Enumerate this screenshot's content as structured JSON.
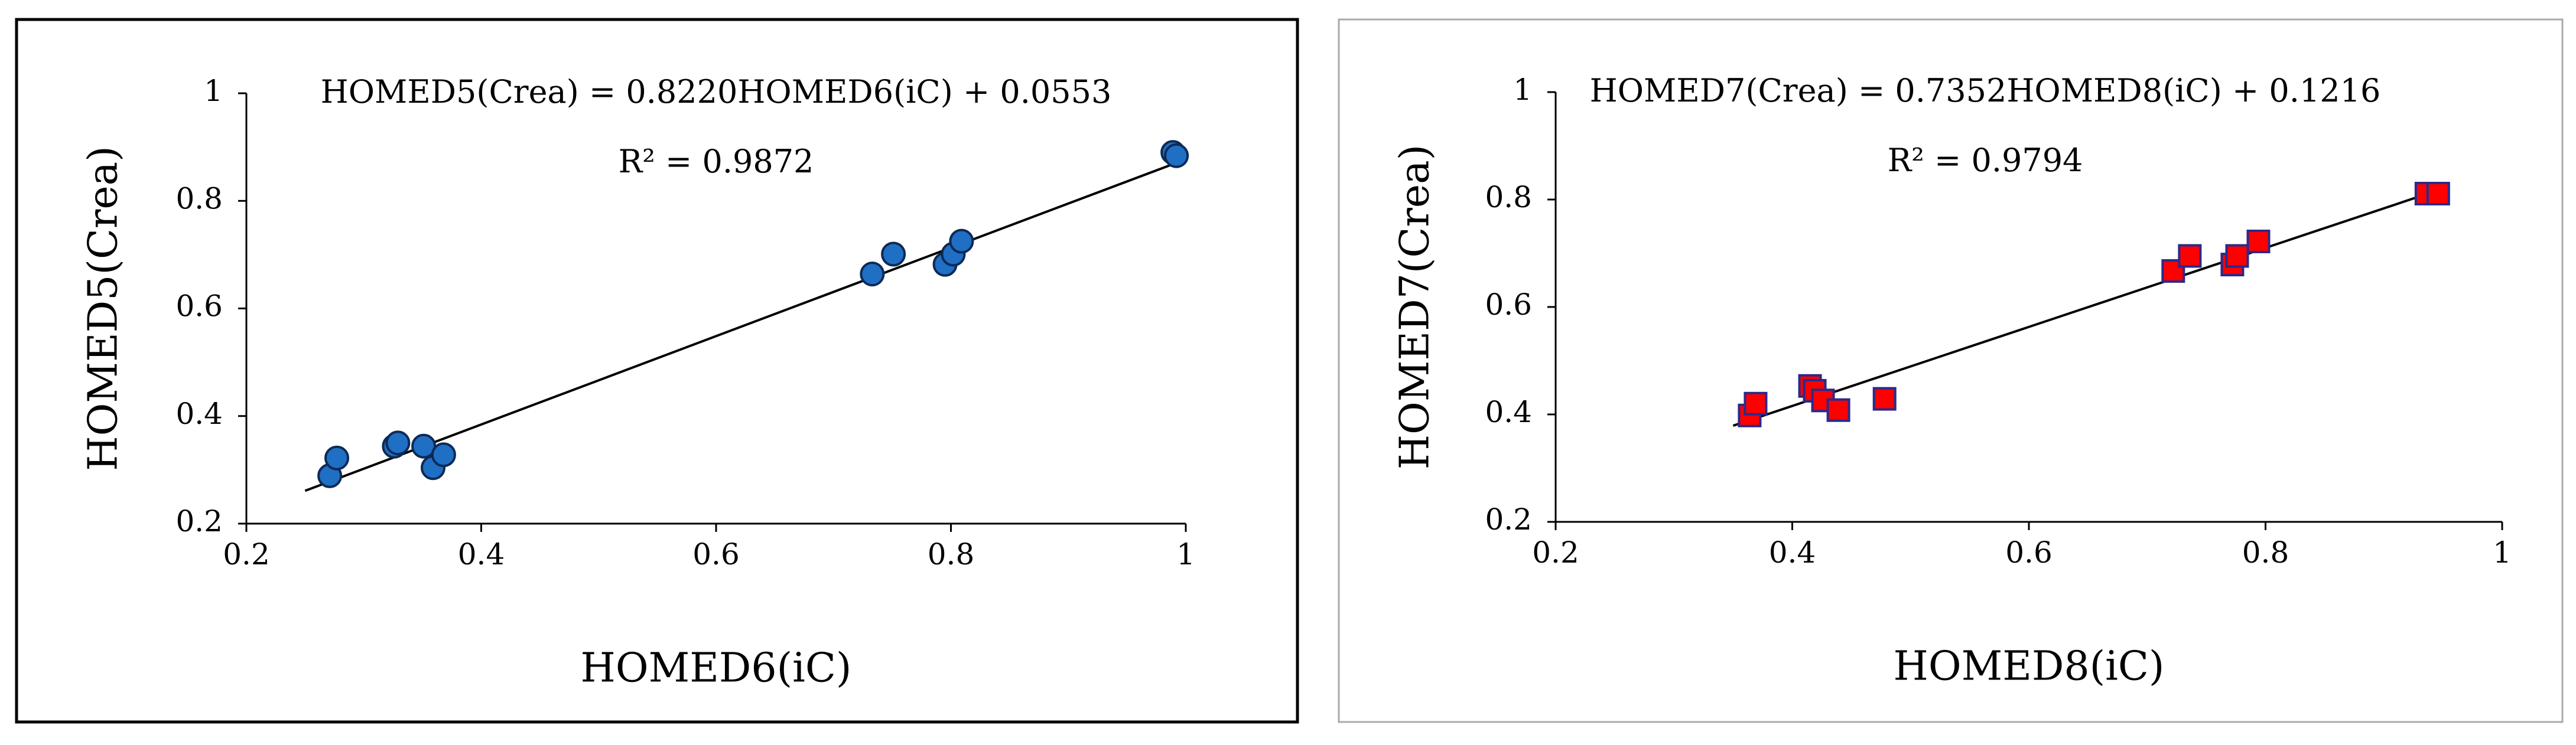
{
  "chart_data": [
    {
      "type": "scatter",
      "xlabel": "HOMED6(iC)",
      "ylabel": "HOMED5(Crea)",
      "annotations": [
        "HOMED5(Crea) = 0.8220HOMED6(iC) + 0.0553",
        "R² = 0.9872"
      ],
      "xlim": [
        0.2,
        1
      ],
      "ylim": [
        0.2,
        1
      ],
      "xticks": [
        0.2,
        0.4,
        0.6,
        0.8,
        1
      ],
      "yticks": [
        0.2,
        0.4,
        0.6,
        0.8,
        1
      ],
      "frame_color": "#000000",
      "marker": "circle",
      "series": [
        {
          "color": "#1f6fc5",
          "edge_color": "#0d2a55",
          "x": [
            0.271,
            0.277,
            0.326,
            0.329,
            0.351,
            0.359,
            0.368,
            0.733,
            0.751,
            0.795,
            0.802,
            0.809,
            0.989,
            0.992
          ],
          "values": [
            0.289,
            0.322,
            0.344,
            0.35,
            0.344,
            0.304,
            0.328,
            0.664,
            0.701,
            0.682,
            0.701,
            0.725,
            0.89,
            0.884
          ]
        }
      ],
      "trendline": {
        "color": "#000000",
        "x": [
          0.25,
          0.99
        ],
        "values": [
          0.261,
          0.869
        ]
      }
    },
    {
      "type": "scatter",
      "xlabel": "HOMED8(iC)",
      "ylabel": "HOMED7(Crea)",
      "annotations": [
        "HOMED7(Crea) = 0.7352HOMED8(iC) + 0.1216",
        "R² = 0.9794"
      ],
      "xlim": [
        0.2,
        1
      ],
      "ylim": [
        0.2,
        1
      ],
      "xticks": [
        0.2,
        0.4,
        0.6,
        0.8,
        1
      ],
      "yticks": [
        0.2,
        0.4,
        0.6,
        0.8,
        1
      ],
      "frame_color": "#aaaaaa",
      "marker": "square",
      "series": [
        {
          "color": "#ff0000",
          "edge_color": "#2a2a8c",
          "x": [
            0.364,
            0.369,
            0.415,
            0.419,
            0.426,
            0.439,
            0.478,
            0.722,
            0.736,
            0.772,
            0.776,
            0.794,
            0.936,
            0.946
          ],
          "values": [
            0.398,
            0.42,
            0.453,
            0.444,
            0.426,
            0.408,
            0.429,
            0.667,
            0.695,
            0.679,
            0.695,
            0.722,
            0.811,
            0.811
          ]
        }
      ],
      "trendline": {
        "color": "#000000",
        "x": [
          0.35,
          0.94
        ],
        "values": [
          0.379,
          0.813
        ]
      }
    }
  ]
}
